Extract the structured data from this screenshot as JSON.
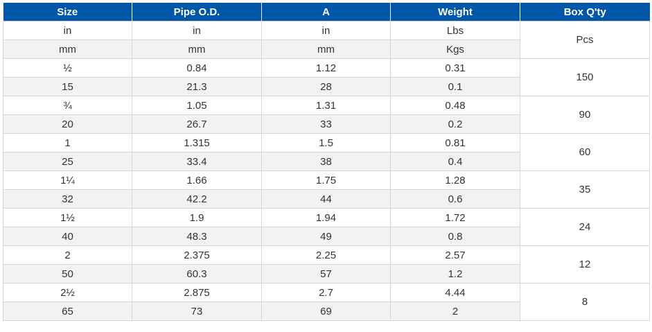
{
  "headers": [
    "Size",
    "Pipe O.D.",
    "A",
    "Weight",
    "Box Q'ty"
  ],
  "colors": {
    "header_bg": "#0057a8",
    "header_text": "#ffffff",
    "row_alt": "#f2f2f2",
    "border": "#d6d6d6"
  },
  "units": [
    {
      "size": "in",
      "od": "in",
      "a": "in",
      "weight": "Lbs"
    },
    {
      "size": "mm",
      "od": "mm",
      "a": "mm",
      "weight": "Kgs"
    }
  ],
  "units_box": "Pcs",
  "groups": [
    {
      "box": "150",
      "rows": [
        {
          "size": "½",
          "od": "0.84",
          "a": "1.12",
          "weight": "0.31"
        },
        {
          "size": "15",
          "od": "21.3",
          "a": "28",
          "weight": "0.1"
        }
      ]
    },
    {
      "box": "90",
      "rows": [
        {
          "size": "¾",
          "od": "1.05",
          "a": "1.31",
          "weight": "0.48"
        },
        {
          "size": "20",
          "od": "26.7",
          "a": "33",
          "weight": "0.2"
        }
      ]
    },
    {
      "box": "60",
      "rows": [
        {
          "size": "1",
          "od": "1.315",
          "a": "1.5",
          "weight": "0.81"
        },
        {
          "size": "25",
          "od": "33.4",
          "a": "38",
          "weight": "0.4"
        }
      ]
    },
    {
      "box": "35",
      "rows": [
        {
          "size": "1¼",
          "od": "1.66",
          "a": "1.75",
          "weight": "1.28"
        },
        {
          "size": "32",
          "od": "42.2",
          "a": "44",
          "weight": "0.6"
        }
      ]
    },
    {
      "box": "24",
      "rows": [
        {
          "size": "1½",
          "od": "1.9",
          "a": "1.94",
          "weight": "1.72"
        },
        {
          "size": "40",
          "od": "48.3",
          "a": "49",
          "weight": "0.8"
        }
      ]
    },
    {
      "box": "12",
      "rows": [
        {
          "size": "2",
          "od": "2.375",
          "a": "2.25",
          "weight": "2.57"
        },
        {
          "size": "50",
          "od": "60.3",
          "a": "57",
          "weight": "1.2"
        }
      ]
    },
    {
      "box": "8",
      "rows": [
        {
          "size": "2½",
          "od": "2.875",
          "a": "2.7",
          "weight": "4.44"
        },
        {
          "size": "65",
          "od": "73",
          "a": "69",
          "weight": "2"
        }
      ]
    }
  ]
}
